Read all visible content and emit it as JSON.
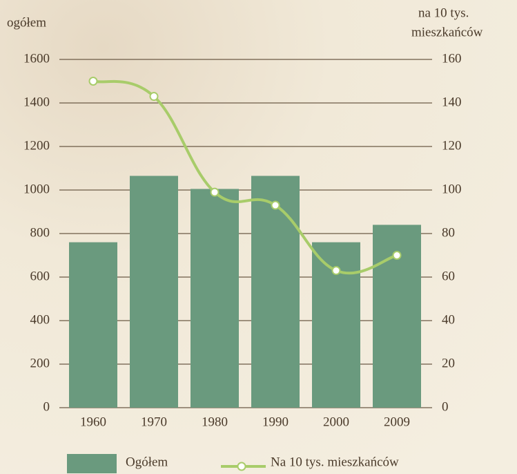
{
  "chart_data": {
    "type": "bar_line",
    "ylabel": "ogółem",
    "y2label": [
      "na 10 tys.",
      "mieszkańców"
    ],
    "categories": [
      "1960",
      "1970",
      "1980",
      "1990",
      "2000",
      "2009"
    ],
    "series": [
      {
        "name": "Ogółem",
        "type": "bar",
        "color": "#6a9a7e",
        "values": [
          760,
          1065,
          1005,
          1065,
          760,
          840
        ]
      },
      {
        "name": "Na 10 tys. mieszkańców",
        "type": "line",
        "axis": "y2",
        "color": "#a8cc6a",
        "values": [
          150,
          143,
          99,
          93,
          63,
          70
        ]
      }
    ],
    "ylim": [
      0,
      1600
    ],
    "yticks": [
      0,
      200,
      400,
      600,
      800,
      1000,
      1200,
      1400,
      1600
    ],
    "y2lim": [
      0,
      160
    ],
    "y2ticks": [
      0,
      20,
      40,
      60,
      80,
      100,
      120,
      140,
      160
    ],
    "grid": true
  }
}
